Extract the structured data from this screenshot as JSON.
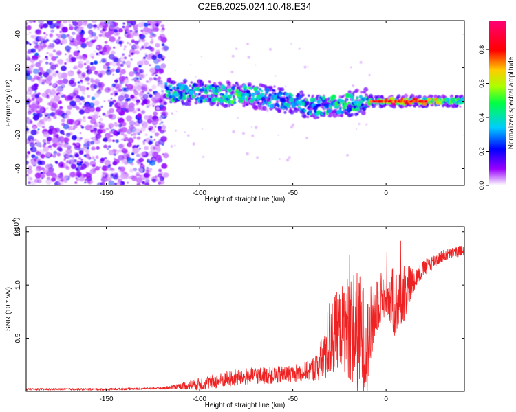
{
  "title": "C2E6.2025.024.10.48.E34",
  "chart_data": [
    {
      "type": "heatmap",
      "xlabel": "Height of straight line (km)",
      "ylabel": "Frequency (Hz)",
      "xlim": [
        -193,
        42
      ],
      "ylim": [
        -50,
        48
      ],
      "xticks": [
        -150,
        -100,
        -50,
        0
      ],
      "xtick_labels": [
        "-150",
        "-100",
        "-50",
        "0"
      ],
      "yticks": [
        40,
        20,
        0,
        -20,
        -40
      ],
      "ytick_labels": [
        "40",
        "20",
        "0",
        "-20",
        "-40"
      ],
      "colorbar": {
        "label": "Normalized spectral amplitude",
        "range": [
          0,
          0.97
        ],
        "ticks": [
          0.0,
          0.2,
          0.4,
          0.6,
          0.8
        ],
        "tick_labels": [
          "0.0",
          "0.2",
          "0.4",
          "0.6",
          "0.8"
        ],
        "colors": [
          "#ffffff",
          "#9900ff",
          "#0000ff",
          "#00ccff",
          "#00ff44",
          "#aaff00",
          "#ffcc00",
          "#ff0000",
          "#ff0077"
        ]
      },
      "noise_region": {
        "x_from": -193,
        "x_to": -118,
        "amplitude": 0.12
      },
      "signal_track": [
        {
          "x": -118,
          "f": 6,
          "amp": 0.45
        },
        {
          "x": -100,
          "f": 5,
          "amp": 0.4
        },
        {
          "x": -80,
          "f": 4,
          "amp": 0.5
        },
        {
          "x": -60,
          "f": 2,
          "amp": 0.35
        },
        {
          "x": -40,
          "f": -3,
          "amp": 0.4
        },
        {
          "x": -25,
          "f": -2,
          "amp": 0.45
        },
        {
          "x": -10,
          "f": 0,
          "amp": 0.4
        },
        {
          "x": 0,
          "f": 0,
          "amp": 0.85
        },
        {
          "x": 20,
          "f": 0,
          "amp": 0.7
        },
        {
          "x": 42,
          "f": 0,
          "amp": 0.45
        }
      ]
    },
    {
      "type": "line",
      "xlabel": "Height of straight line (km)",
      "ylabel": "SNR (10 * v/v)",
      "multiplier": "(x10^4)",
      "xlim": [
        -193,
        42
      ],
      "ylim": [
        0,
        1.55
      ],
      "xticks": [
        -150,
        -100,
        -50,
        0
      ],
      "xtick_labels": [
        "-150",
        "-100",
        "-50",
        "0"
      ],
      "yticks": [
        0.5,
        1.0,
        1.5
      ],
      "ytick_labels": [
        "0.5",
        "1.0",
        "1.5"
      ],
      "series": [
        {
          "color": "#ee2222",
          "x": [
            -193,
            -150,
            -120,
            -110,
            -100,
            -90,
            -80,
            -70,
            -60,
            -50,
            -40,
            -35,
            -30,
            -25,
            -20,
            -15,
            -10,
            -5,
            0,
            5,
            10,
            15,
            20,
            25,
            30,
            35,
            42
          ],
          "y": [
            0.02,
            0.02,
            0.03,
            0.05,
            0.07,
            0.1,
            0.13,
            0.15,
            0.15,
            0.17,
            0.2,
            0.28,
            0.5,
            0.6,
            0.62,
            0.55,
            0.45,
            0.85,
            0.92,
            0.82,
            0.95,
            1.05,
            1.15,
            1.22,
            1.27,
            1.3,
            1.33
          ],
          "noise": [
            0.01,
            0.01,
            0.01,
            0.03,
            0.06,
            0.07,
            0.08,
            0.08,
            0.08,
            0.08,
            0.1,
            0.2,
            0.4,
            0.35,
            0.5,
            0.6,
            0.45,
            0.3,
            0.2,
            0.35,
            0.3,
            0.1,
            0.08,
            0.07,
            0.06,
            0.05,
            0.05
          ]
        }
      ]
    }
  ]
}
